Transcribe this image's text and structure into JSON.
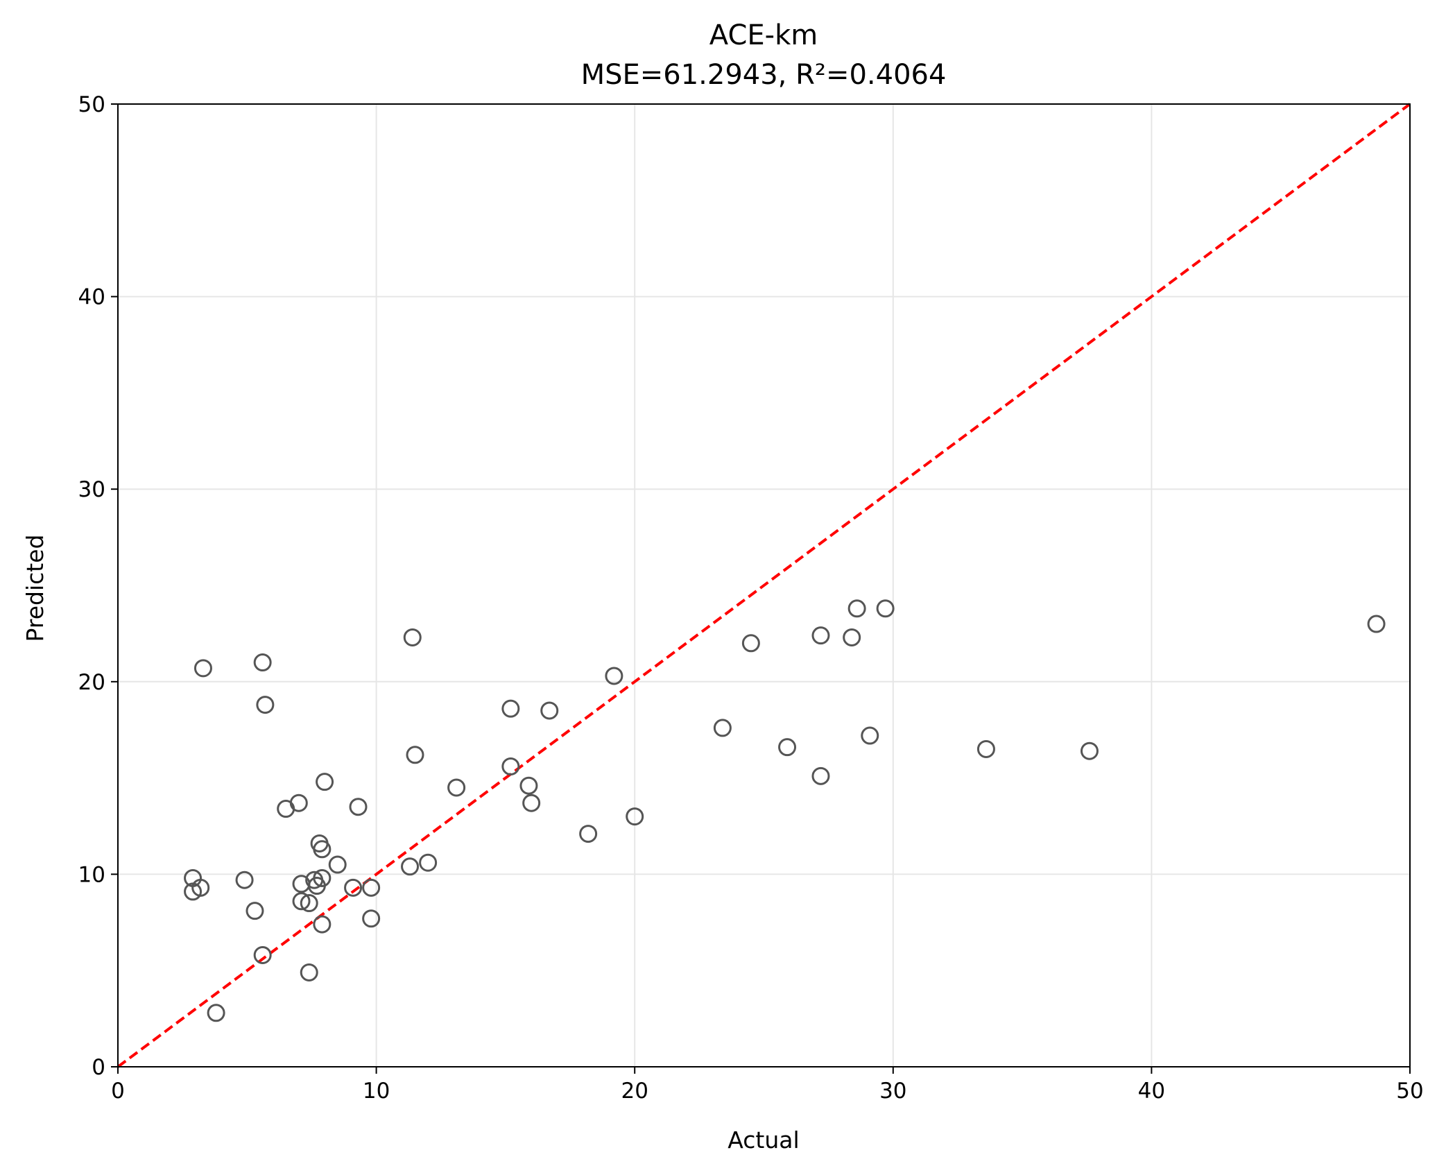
{
  "chart_data": {
    "type": "scatter",
    "title": "ACE-km",
    "subtitle": "MSE=61.2943, R²=0.4064",
    "xlabel": "Actual",
    "ylabel": "Predicted",
    "xlim": [
      0,
      50
    ],
    "ylim": [
      0,
      50
    ],
    "xticks": [
      "0",
      "10",
      "20",
      "30",
      "40",
      "50"
    ],
    "yticks": [
      "0",
      "10",
      "20",
      "30",
      "40",
      "50"
    ],
    "grid": true,
    "legend": "none",
    "colors": {
      "marker_edge": "#555555",
      "reference_line": "#ff0000",
      "grid": "#e6e6e6",
      "axes": "#000000"
    },
    "reference_line": {
      "type": "identity",
      "from": [
        0,
        0
      ],
      "to": [
        50,
        50
      ],
      "style": "dashed"
    },
    "points": [
      {
        "x": 2.9,
        "y": 9.8
      },
      {
        "x": 2.9,
        "y": 9.1
      },
      {
        "x": 3.2,
        "y": 9.3
      },
      {
        "x": 3.3,
        "y": 20.7
      },
      {
        "x": 3.8,
        "y": 2.8
      },
      {
        "x": 4.9,
        "y": 9.7
      },
      {
        "x": 5.3,
        "y": 8.1
      },
      {
        "x": 5.6,
        "y": 5.8
      },
      {
        "x": 5.6,
        "y": 21.0
      },
      {
        "x": 5.7,
        "y": 18.8
      },
      {
        "x": 6.5,
        "y": 13.4
      },
      {
        "x": 7.0,
        "y": 13.7
      },
      {
        "x": 7.1,
        "y": 9.5
      },
      {
        "x": 7.1,
        "y": 8.6
      },
      {
        "x": 7.4,
        "y": 8.5
      },
      {
        "x": 7.4,
        "y": 4.9
      },
      {
        "x": 7.6,
        "y": 9.7
      },
      {
        "x": 7.7,
        "y": 9.4
      },
      {
        "x": 7.8,
        "y": 11.6
      },
      {
        "x": 7.9,
        "y": 11.3
      },
      {
        "x": 7.9,
        "y": 9.8
      },
      {
        "x": 7.9,
        "y": 7.4
      },
      {
        "x": 8.0,
        "y": 14.8
      },
      {
        "x": 8.5,
        "y": 10.5
      },
      {
        "x": 9.1,
        "y": 9.3
      },
      {
        "x": 9.3,
        "y": 13.5
      },
      {
        "x": 9.8,
        "y": 9.3
      },
      {
        "x": 9.8,
        "y": 7.7
      },
      {
        "x": 11.3,
        "y": 10.4
      },
      {
        "x": 11.4,
        "y": 22.3
      },
      {
        "x": 11.5,
        "y": 16.2
      },
      {
        "x": 12.0,
        "y": 10.6
      },
      {
        "x": 13.1,
        "y": 14.5
      },
      {
        "x": 15.2,
        "y": 18.6
      },
      {
        "x": 15.2,
        "y": 15.6
      },
      {
        "x": 15.9,
        "y": 14.6
      },
      {
        "x": 16.0,
        "y": 13.7
      },
      {
        "x": 16.7,
        "y": 18.5
      },
      {
        "x": 18.2,
        "y": 12.1
      },
      {
        "x": 19.2,
        "y": 20.3
      },
      {
        "x": 20.0,
        "y": 13.0
      },
      {
        "x": 23.4,
        "y": 17.6
      },
      {
        "x": 24.5,
        "y": 22.0
      },
      {
        "x": 25.9,
        "y": 16.6
      },
      {
        "x": 27.2,
        "y": 22.4
      },
      {
        "x": 27.2,
        "y": 15.1
      },
      {
        "x": 28.4,
        "y": 22.3
      },
      {
        "x": 28.6,
        "y": 23.8
      },
      {
        "x": 29.1,
        "y": 17.2
      },
      {
        "x": 29.7,
        "y": 23.8
      },
      {
        "x": 33.6,
        "y": 16.5
      },
      {
        "x": 37.6,
        "y": 16.4
      },
      {
        "x": 48.7,
        "y": 23.0
      }
    ]
  }
}
